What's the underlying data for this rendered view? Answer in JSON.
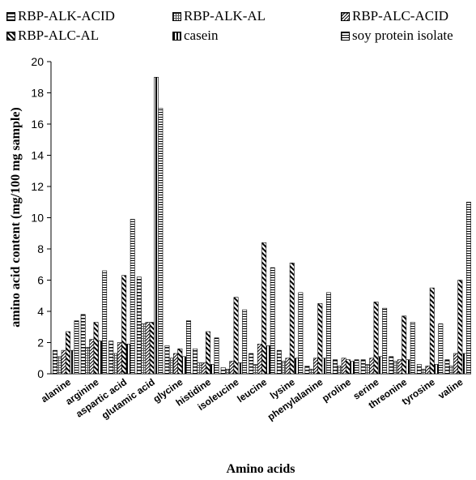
{
  "chart_data": {
    "type": "bar",
    "xlabel": "Amino acids",
    "ylabel": "amino acid content (mg/100 mg sample)",
    "ylim": [
      0,
      20
    ],
    "yticks": [
      "0",
      "2",
      "4",
      "6",
      "8",
      "10",
      "12",
      "14",
      "16",
      "18",
      "20"
    ],
    "grid": false,
    "legend_position": "top",
    "categories": [
      "alanine",
      "arginine",
      "aspartic acid",
      "glutamic acid",
      "glycine",
      "histidine",
      "isoleucine",
      "leucine",
      "lysine",
      "phenylalanine",
      "proline",
      "serine",
      "threonine",
      "tyrosine",
      "valine"
    ],
    "series": [
      {
        "name": "RBP-ALK-ACID",
        "pattern": "hstripe",
        "values": [
          1.5,
          3.8,
          2.1,
          6.2,
          1.8,
          1.6,
          0.4,
          1.3,
          1.5,
          0.5,
          0.9,
          0.9,
          1.1,
          0.6,
          0.9
        ]
      },
      {
        "name": "RBP-ALK-AL",
        "pattern": "grid",
        "values": [
          1.1,
          1.7,
          1.3,
          3.2,
          1.0,
          0.7,
          0.3,
          0.6,
          0.8,
          0.3,
          0.5,
          0.6,
          0.8,
          0.3,
          0.5
        ]
      },
      {
        "name": "RBP-ALC-ACID",
        "pattern": "diag",
        "values": [
          1.5,
          2.2,
          2.0,
          3.3,
          1.3,
          0.7,
          0.8,
          1.9,
          1.0,
          1.0,
          1.0,
          1.0,
          0.9,
          0.5,
          1.3
        ]
      },
      {
        "name": "RBP-ALC-AL",
        "pattern": "zigzag",
        "values": [
          2.7,
          3.3,
          6.3,
          3.3,
          1.6,
          2.7,
          4.9,
          8.4,
          7.1,
          4.5,
          0.9,
          4.6,
          3.7,
          5.5,
          6.0
        ]
      },
      {
        "name": "casein",
        "pattern": "vstripe",
        "values": [
          1.5,
          2.1,
          1.9,
          19.0,
          1.1,
          0.6,
          0.7,
          1.8,
          1.0,
          1.0,
          0.8,
          1.1,
          0.9,
          0.6,
          1.3
        ]
      },
      {
        "name": "soy protein isolate",
        "pattern": "dense-h",
        "values": [
          3.4,
          6.6,
          9.9,
          17.0,
          3.4,
          2.3,
          4.1,
          6.8,
          5.2,
          5.2,
          0.9,
          4.2,
          3.3,
          3.2,
          11.0
        ]
      }
    ]
  }
}
